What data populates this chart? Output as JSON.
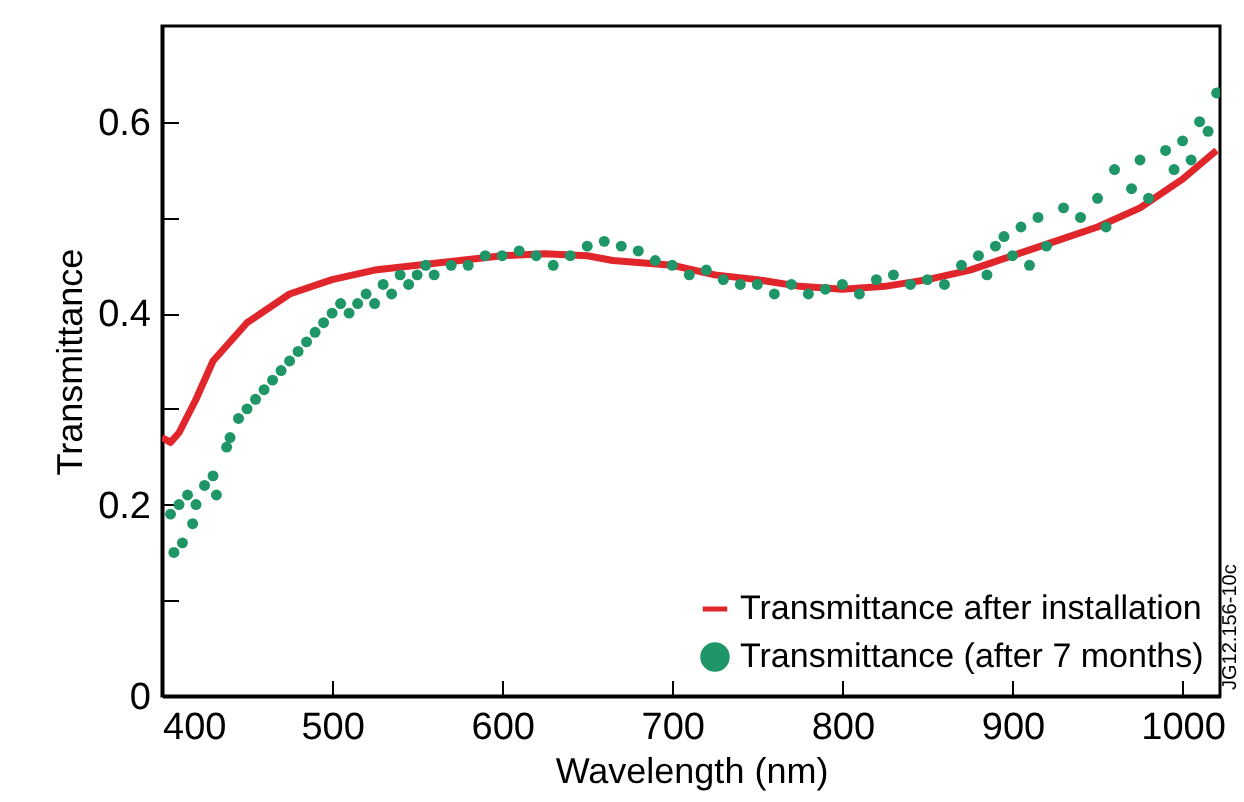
{
  "chart_data": {
    "type": "line",
    "xlabel": "Wavelength (nm)",
    "ylabel": "Transmittance",
    "xlim": [
      400,
      1022
    ],
    "xticks": [
      400,
      500,
      600,
      700,
      800,
      900,
      1000
    ],
    "ylim": [
      0,
      0.7
    ],
    "yticks": [
      0,
      {
        "value": 0.1,
        "label": null
      },
      0.2,
      {
        "value": 0.3,
        "label": null
      },
      0.4,
      {
        "value": 0.5,
        "label": null
      },
      0.6
    ],
    "grid": false,
    "legend": "bottom right",
    "annotations": [
      "JG12.156-10c"
    ],
    "series": [
      {
        "name": "Transmittance after installation",
        "color": "#e0262a",
        "x": [
          400,
          405,
          410,
          420,
          430,
          450,
          475,
          500,
          525,
          550,
          575,
          600,
          625,
          650,
          665,
          700,
          725,
          750,
          775,
          800,
          825,
          850,
          875,
          900,
          925,
          950,
          975,
          1000,
          1020
        ],
        "values": [
          0.27,
          0.265,
          0.275,
          0.31,
          0.35,
          0.39,
          0.42,
          0.435,
          0.445,
          0.45,
          0.455,
          0.46,
          0.462,
          0.46,
          0.455,
          0.45,
          0.44,
          0.435,
          0.428,
          0.425,
          0.428,
          0.435,
          0.445,
          0.46,
          0.475,
          0.49,
          0.51,
          0.54,
          0.57
        ]
      },
      {
        "name": "Transmittance (after 7 months)",
        "type": "scatter",
        "marker": "circle",
        "color": "#1e9668",
        "x": [
          405,
          407,
          410,
          412,
          415,
          418,
          420,
          425,
          430,
          432,
          438,
          440,
          445,
          450,
          455,
          460,
          465,
          470,
          475,
          480,
          485,
          490,
          495,
          500,
          505,
          510,
          515,
          520,
          525,
          530,
          535,
          540,
          545,
          550,
          555,
          560,
          570,
          580,
          590,
          600,
          610,
          620,
          630,
          640,
          650,
          660,
          670,
          680,
          690,
          700,
          710,
          720,
          730,
          740,
          750,
          760,
          770,
          780,
          790,
          800,
          810,
          820,
          830,
          840,
          850,
          860,
          870,
          880,
          885,
          890,
          895,
          900,
          905,
          910,
          915,
          920,
          930,
          940,
          950,
          955,
          960,
          970,
          975,
          980,
          990,
          995,
          1000,
          1005,
          1010,
          1015,
          1020
        ],
        "values": [
          0.19,
          0.15,
          0.2,
          0.16,
          0.21,
          0.18,
          0.2,
          0.22,
          0.23,
          0.21,
          0.26,
          0.27,
          0.29,
          0.3,
          0.31,
          0.32,
          0.33,
          0.34,
          0.35,
          0.36,
          0.37,
          0.38,
          0.39,
          0.4,
          0.41,
          0.4,
          0.41,
          0.42,
          0.41,
          0.43,
          0.42,
          0.44,
          0.43,
          0.44,
          0.45,
          0.44,
          0.45,
          0.45,
          0.46,
          0.46,
          0.465,
          0.46,
          0.45,
          0.46,
          0.47,
          0.475,
          0.47,
          0.465,
          0.455,
          0.45,
          0.44,
          0.445,
          0.435,
          0.43,
          0.43,
          0.42,
          0.43,
          0.42,
          0.425,
          0.43,
          0.42,
          0.435,
          0.44,
          0.43,
          0.435,
          0.43,
          0.45,
          0.46,
          0.44,
          0.47,
          0.48,
          0.46,
          0.49,
          0.45,
          0.5,
          0.47,
          0.51,
          0.5,
          0.52,
          0.49,
          0.55,
          0.53,
          0.56,
          0.52,
          0.57,
          0.55,
          0.58,
          0.56,
          0.6,
          0.59,
          0.63
        ]
      }
    ]
  }
}
